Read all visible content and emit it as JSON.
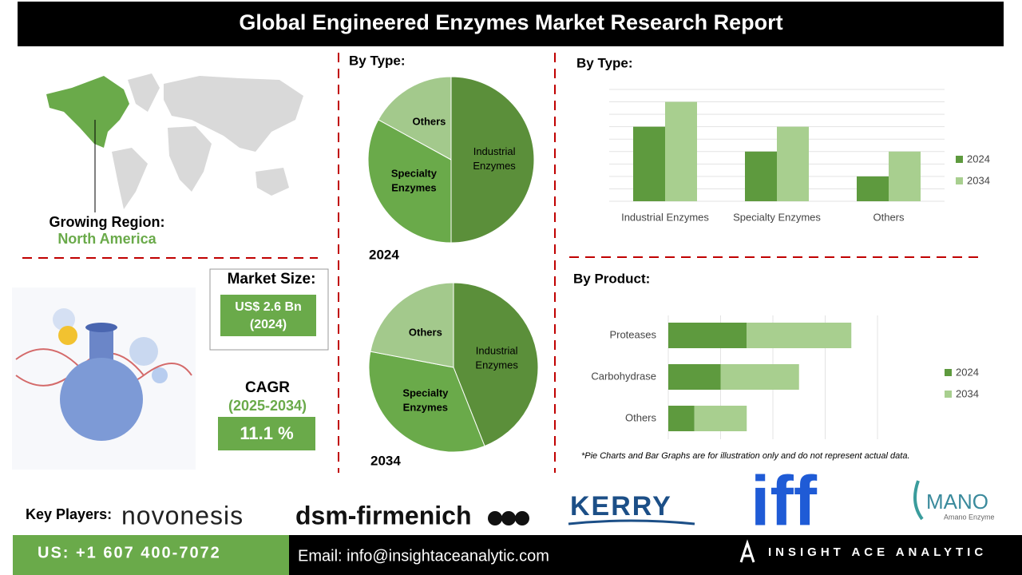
{
  "header": {
    "title": "Global Engineered Enzymes Market Research Report"
  },
  "region": {
    "label": "Growing Region:",
    "value": "North America"
  },
  "market_size": {
    "label": "Market Size:",
    "value": "US$ 2.6 Bn",
    "year": "(2024)"
  },
  "cagr": {
    "label": "CAGR",
    "period": "(2025-2034)",
    "value": "11.1 %"
  },
  "chart_data": [
    {
      "type": "pie",
      "title": "By Type:",
      "caption": "2024",
      "categories": [
        "Industrial Enzymes",
        "Specialty Enzymes",
        "Others"
      ],
      "values": [
        50,
        33,
        17
      ],
      "colors": [
        "#5b8f3a",
        "#6aaa4a",
        "#a3c98c"
      ]
    },
    {
      "type": "pie",
      "caption": "2034",
      "categories": [
        "Industrial Enzymes",
        "Specialty Enzymes",
        "Others"
      ],
      "values": [
        44,
        34,
        22
      ],
      "colors": [
        "#5b8f3a",
        "#6aaa4a",
        "#a3c98c"
      ]
    },
    {
      "type": "bar",
      "orientation": "vertical",
      "title": "By Type:",
      "categories": [
        "Industrial Enzymes",
        "Specialty Enzymes",
        "Others"
      ],
      "ylim": [
        0,
        4.5
      ],
      "legend": "right",
      "series": [
        {
          "name": "2024",
          "color": "#5e9a3e",
          "values": [
            3,
            2,
            1
          ]
        },
        {
          "name": "2034",
          "color": "#a8cf8f",
          "values": [
            4,
            3,
            2
          ]
        }
      ]
    },
    {
      "type": "bar",
      "orientation": "horizontal",
      "stacked": true,
      "title": "By Product:",
      "categories": [
        "Proteases",
        "Carbohydrase",
        "Others"
      ],
      "xlim": [
        0,
        4
      ],
      "legend": "right",
      "series": [
        {
          "name": "2024",
          "color": "#5e9a3e",
          "values": [
            1.5,
            1,
            0.5
          ]
        },
        {
          "name": "2034",
          "color": "#a8cf8f",
          "values": [
            2,
            1.5,
            1
          ]
        }
      ]
    }
  ],
  "note": "*Pie Charts and Bar Graphs are for illustration only and do not represent actual data.",
  "key_players": {
    "label": "Key Players:",
    "names": [
      "novonesis",
      "dsm-firmenich",
      "KERRY",
      "iff",
      "MANO",
      "Amano Enzyme"
    ]
  },
  "footer": {
    "phone": "US: +1 607 400-7072",
    "email": "Email: info@insightaceanalytic.com",
    "brand": "INSIGHT ACE ANALYTIC"
  }
}
